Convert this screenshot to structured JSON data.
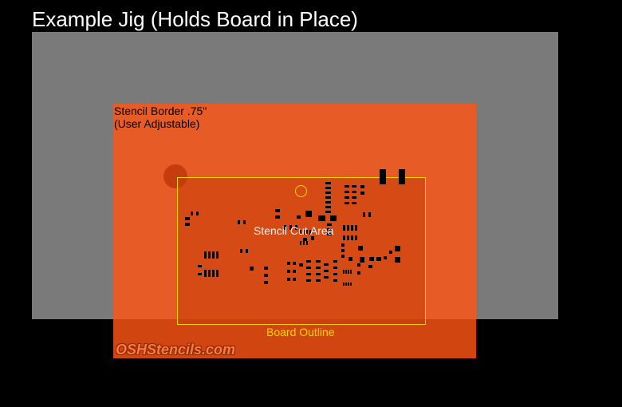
{
  "title": "Example Jig (Holds Board in Place)",
  "stencil_border": {
    "line1": "Stencil Border .75\"",
    "line2": "(User Adjustable)"
  },
  "stencil_cut_area_label": "Stencil Cut Area",
  "board_outline_label": "Board Outline",
  "brand_watermark": "OSHStencils.com",
  "colors": {
    "background": "#000000",
    "jig": "#7a7a7a",
    "stencil": "#ff5614",
    "board_outline": "#ffd400",
    "pads": "#000000"
  }
}
